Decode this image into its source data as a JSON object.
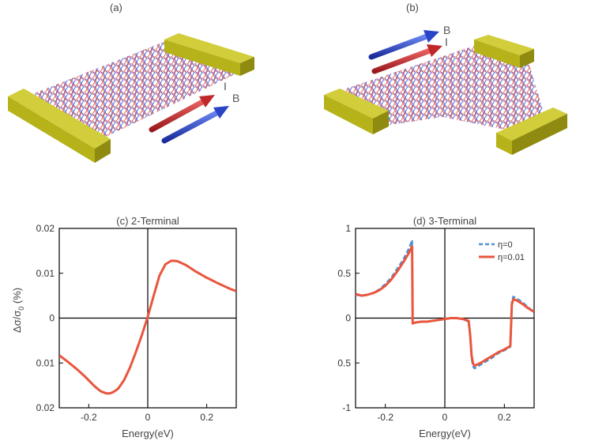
{
  "panels": {
    "a_label": "(a)",
    "b_label": "(b)",
    "a_arrow_I": "I",
    "a_arrow_B": "B",
    "b_arrow_B": "B",
    "b_arrow_I": "I"
  },
  "colors": {
    "gold": "#b6b21a",
    "gold_dark": "#8f8a10",
    "lattice_red": "#d2403c",
    "lattice_blue": "#3646c8",
    "arrow_red": "#c0282a",
    "arrow_blue": "#2a44c8",
    "curve_red": "#e8563e",
    "curve_blue_dashed": "#4a90d6"
  },
  "chart_data": [
    {
      "type": "line",
      "title": "(c) 2-Terminal",
      "xlabel": "Energy(eV)",
      "ylabel": "Δσ/σ",
      "ylabel_sub": "0",
      "ylabel_unit": "(%)",
      "xlim": [
        -0.3,
        0.3
      ],
      "ylim": [
        -0.02,
        0.02
      ],
      "xticks": [
        -0.2,
        0,
        0.2
      ],
      "xtick_labels": [
        "-0.2",
        "0",
        "0.2"
      ],
      "yticks": [
        0.02,
        0.01,
        0,
        -0.01,
        -0.02
      ],
      "ytick_labels": [
        "0.02",
        "0.01",
        "0",
        "0.01",
        "0.02"
      ],
      "series": [
        {
          "x": [
            -0.3,
            -0.27,
            -0.24,
            -0.21,
            -0.18,
            -0.16,
            -0.14,
            -0.13,
            -0.12,
            -0.11,
            -0.1,
            -0.08,
            -0.06,
            -0.04,
            -0.02,
            0.0,
            0.02,
            0.04,
            0.06,
            0.08,
            0.1,
            0.13,
            0.16,
            0.2,
            0.24,
            0.28,
            0.3
          ],
          "y": [
            -0.0083,
            -0.0098,
            -0.0114,
            -0.0132,
            -0.0152,
            -0.0163,
            -0.0168,
            -0.0168,
            -0.0166,
            -0.0162,
            -0.0157,
            -0.0138,
            -0.011,
            -0.0075,
            -0.0038,
            0.0003,
            0.005,
            0.0095,
            0.012,
            0.0128,
            0.0127,
            0.0118,
            0.0105,
            0.009,
            0.0077,
            0.0065,
            0.006
          ]
        }
      ]
    },
    {
      "type": "line",
      "title": "(d) 3-Terminal",
      "xlabel": "Energy(eV)",
      "xlim": [
        -0.3,
        0.3
      ],
      "ylim": [
        -1,
        1
      ],
      "xticks": [
        -0.2,
        0,
        0.2
      ],
      "xtick_labels": [
        "-0.2",
        "0",
        "0.2"
      ],
      "yticks": [
        1,
        0.5,
        0,
        -0.5,
        -1
      ],
      "ytick_labels": [
        "1",
        "0.5",
        "0",
        "0.5",
        "-1"
      ],
      "legend": {
        "position": "top-right"
      },
      "series": [
        {
          "name": "η=0",
          "style": "dashed",
          "x": [
            -0.3,
            -0.28,
            -0.26,
            -0.24,
            -0.22,
            -0.2,
            -0.18,
            -0.16,
            -0.14,
            -0.12,
            -0.11,
            -0.108,
            -0.1,
            -0.08,
            -0.06,
            -0.04,
            -0.02,
            0.0,
            0.02,
            0.04,
            0.06,
            0.08,
            0.085,
            0.09,
            0.095,
            0.1,
            0.12,
            0.14,
            0.16,
            0.18,
            0.2,
            0.21,
            0.22,
            0.225,
            0.23,
            0.24,
            0.26,
            0.28,
            0.3
          ],
          "y": [
            0.26,
            0.25,
            0.26,
            0.28,
            0.32,
            0.38,
            0.45,
            0.55,
            0.65,
            0.78,
            0.87,
            -0.06,
            -0.05,
            -0.04,
            -0.04,
            -0.03,
            -0.02,
            -0.01,
            0.0,
            0.0,
            -0.01,
            -0.04,
            -0.2,
            -0.45,
            -0.54,
            -0.56,
            -0.52,
            -0.48,
            -0.44,
            -0.39,
            -0.36,
            -0.34,
            -0.32,
            0.18,
            0.24,
            0.22,
            0.18,
            0.12,
            0.07
          ]
        },
        {
          "name": "η=0.01",
          "style": "solid",
          "x": [
            -0.3,
            -0.28,
            -0.26,
            -0.24,
            -0.22,
            -0.2,
            -0.18,
            -0.16,
            -0.14,
            -0.12,
            -0.11,
            -0.108,
            -0.1,
            -0.08,
            -0.06,
            -0.04,
            -0.02,
            0.0,
            0.02,
            0.04,
            0.06,
            0.08,
            0.085,
            0.09,
            0.095,
            0.1,
            0.12,
            0.14,
            0.16,
            0.18,
            0.2,
            0.21,
            0.22,
            0.225,
            0.23,
            0.24,
            0.26,
            0.28,
            0.3
          ],
          "y": [
            0.27,
            0.25,
            0.26,
            0.28,
            0.31,
            0.36,
            0.43,
            0.52,
            0.62,
            0.73,
            0.8,
            -0.06,
            -0.05,
            -0.04,
            -0.04,
            -0.03,
            -0.02,
            -0.01,
            0.0,
            0.0,
            -0.01,
            -0.03,
            -0.18,
            -0.42,
            -0.51,
            -0.53,
            -0.5,
            -0.46,
            -0.42,
            -0.38,
            -0.35,
            -0.33,
            -0.31,
            0.15,
            0.21,
            0.2,
            0.16,
            0.11,
            0.07
          ]
        }
      ]
    }
  ]
}
